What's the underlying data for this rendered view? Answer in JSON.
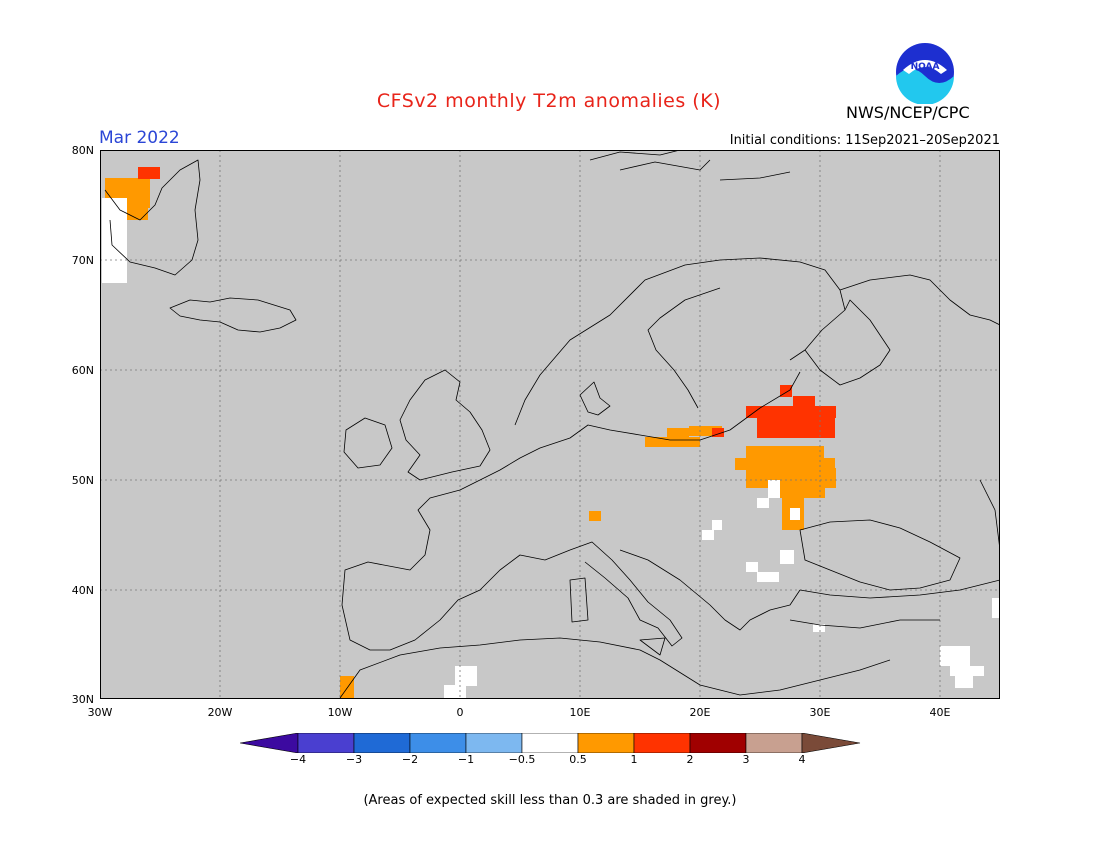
{
  "title": "CFSv2 monthly T2m anomalies (K)",
  "month_label": "Mar 2022",
  "agency": "NWS/NCEP/CPC",
  "logo_text": "NOAA",
  "initial_conditions": "Initial conditions: 11Sep2021–20Sep2021",
  "footnote": "(Areas of expected skill less than 0.3 are shaded in grey.)",
  "colors": {
    "grey_mask": "#c8c8c8",
    "near_zero": "#ffffff",
    "warm_0_5_1": "#ff9900",
    "warm_1_2": "#ff3300"
  },
  "lat_labels": [
    "80N",
    "70N",
    "60N",
    "50N",
    "40N",
    "30N"
  ],
  "lon_labels": [
    "30W",
    "20W",
    "10W",
    "0",
    "10E",
    "20E",
    "30E",
    "40E"
  ],
  "colorbar": {
    "labels": [
      "−4",
      "−3",
      "−2",
      "−1",
      "−0.5",
      "0.5",
      "1",
      "2",
      "3",
      "4"
    ],
    "colors": [
      "#3c0aa0",
      "#4a3fd0",
      "#1f6ad6",
      "#3d8ee8",
      "#7db8f0",
      "#ffffff",
      "#ff9900",
      "#ff3300",
      "#a00000",
      "#c8a090",
      "#7a4a38"
    ]
  }
}
